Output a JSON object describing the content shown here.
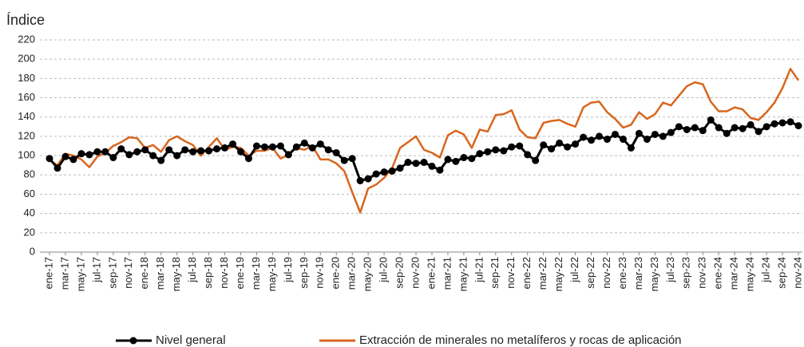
{
  "chart_data": {
    "type": "line",
    "y_label": "Índice",
    "categories": [
      "ene-17",
      null,
      "mar-17",
      null,
      "may-17",
      null,
      "jul-17",
      null,
      "sep-17",
      null,
      "nov-17",
      null,
      "ene-18",
      null,
      "mar-18",
      null,
      "may-18",
      null,
      "jul-18",
      null,
      "sep-18",
      null,
      "nov-18",
      null,
      "ene-19",
      null,
      "mar-19",
      null,
      "may-19",
      null,
      "jul-19",
      null,
      "sep-19",
      null,
      "nov-19",
      null,
      "ene-20",
      null,
      "mar-20",
      null,
      "may-20",
      null,
      "jul-20",
      null,
      "sep-20",
      null,
      "nov-20",
      null,
      "ene-21",
      null,
      "mar-21",
      null,
      "may-21",
      null,
      "jul-21",
      null,
      "sep-21",
      null,
      "nov-21",
      null,
      "ene-22",
      null,
      "mar-22",
      null,
      "may-22",
      null,
      "jul-22",
      null,
      "sep-22",
      null,
      "nov-22",
      null,
      "ene-23",
      null,
      "mar-23",
      null,
      "may-23",
      null,
      "jul-23",
      null,
      "sep-23",
      null,
      "nov-23",
      null,
      "ene-24",
      null,
      "mar-24",
      null,
      "may-24",
      null,
      "jul-24",
      null,
      "sep-24",
      null,
      "nov-24"
    ],
    "series": [
      {
        "name": "Nivel general",
        "color": "#000000",
        "markers": true,
        "values": [
          97,
          87,
          99,
          96,
          102,
          101,
          104,
          104,
          98,
          107,
          101,
          104,
          106,
          100,
          95,
          106,
          100,
          106,
          104,
          105,
          105,
          107,
          108,
          112,
          104,
          97,
          110,
          109,
          109,
          110,
          101,
          109,
          113,
          108,
          112,
          106,
          103,
          95,
          97,
          74,
          76,
          81,
          83,
          84,
          87,
          93,
          92,
          93,
          89,
          85,
          96,
          94,
          98,
          97,
          102,
          104,
          106,
          105,
          109,
          110,
          101,
          95,
          111,
          107,
          113,
          109,
          112,
          119,
          116,
          120,
          117,
          122,
          117,
          108,
          123,
          117,
          122,
          120,
          124,
          130,
          127,
          129,
          126,
          137,
          129,
          123,
          129,
          128,
          132,
          125,
          130,
          133,
          134,
          135,
          131
        ]
      },
      {
        "name": "Extracción de minerales no metalíferos y rocas de aplicación",
        "color": "#d8661f",
        "markers": false,
        "values": [
          95,
          90,
          102,
          100,
          96,
          88,
          99,
          103,
          110,
          114,
          119,
          118,
          108,
          111,
          104,
          116,
          120,
          115,
          111,
          100,
          109,
          118,
          106,
          109,
          108,
          100,
          105,
          105,
          108,
          97,
          101,
          108,
          106,
          110,
          96,
          96,
          92,
          84,
          62,
          41,
          66,
          70,
          77,
          87,
          108,
          114,
          120,
          106,
          103,
          98,
          121,
          126,
          122,
          108,
          127,
          125,
          142,
          143,
          147,
          127,
          119,
          118,
          134,
          136,
          137,
          133,
          130,
          150,
          155,
          156,
          145,
          138,
          129,
          132,
          145,
          138,
          143,
          155,
          152,
          162,
          172,
          176,
          174,
          156,
          146,
          146,
          150,
          148,
          139,
          137,
          145,
          155,
          170,
          190,
          178
        ]
      }
    ],
    "ylim": [
      0,
      220
    ],
    "yticks": [
      0,
      20,
      40,
      60,
      80,
      100,
      120,
      140,
      160,
      180,
      200,
      220
    ],
    "grid": true
  }
}
